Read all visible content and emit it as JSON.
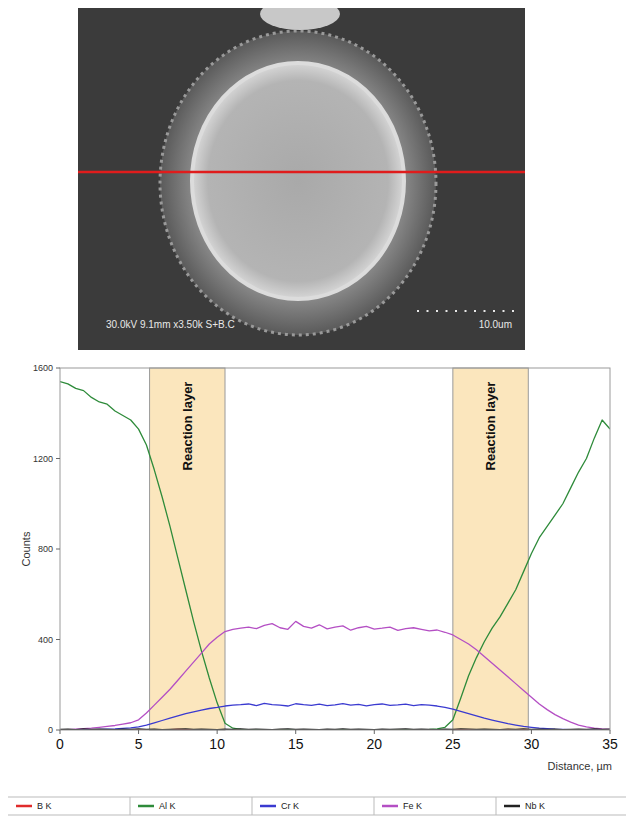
{
  "micrograph": {
    "info": "30.0kV 9.1mm x3.50k S+B.C",
    "scale_bar": "10.0um"
  },
  "chart_data": {
    "type": "line",
    "x_label": "Distance, µm",
    "y_label": "Counts",
    "xlim": [
      0,
      35
    ],
    "xticks": [
      0,
      5,
      10,
      15,
      20,
      25,
      30,
      35
    ],
    "ylim": [
      0,
      1600
    ],
    "yticks": [
      0,
      400,
      800,
      1200,
      1600
    ],
    "grid": false,
    "legend": "bottom",
    "annotations": [
      {
        "label": "Reaction layer",
        "x": [
          5.7,
          10.5
        ]
      },
      {
        "label": "Reaction layer",
        "x": [
          25,
          29.8
        ]
      }
    ],
    "x": [
      0,
      0.5,
      1,
      1.5,
      2,
      2.5,
      3,
      3.5,
      4,
      4.5,
      5,
      5.5,
      6,
      6.5,
      7,
      7.5,
      8,
      8.5,
      9,
      9.5,
      10,
      10.5,
      11,
      11.5,
      12,
      12.5,
      13,
      13.5,
      14,
      14.5,
      15,
      15.5,
      16,
      16.5,
      17,
      17.5,
      18,
      18.5,
      19,
      19.5,
      20,
      20.5,
      21,
      21.5,
      22,
      22.5,
      23,
      23.5,
      24,
      24.5,
      25,
      25.5,
      26,
      26.5,
      27,
      27.5,
      28,
      28.5,
      29,
      29.5,
      30,
      30.5,
      31,
      31.5,
      32,
      32.5,
      33,
      33.5,
      34,
      34.5,
      35
    ],
    "series": [
      {
        "name": "B K",
        "color": "#e02b2b",
        "values": [
          1,
          0,
          2,
          1,
          0,
          1,
          2,
          0,
          1,
          1,
          0,
          2,
          1,
          0,
          1,
          3,
          2,
          1,
          0,
          1,
          2,
          1,
          0,
          1,
          2,
          1,
          0,
          1,
          2,
          1,
          0,
          1,
          2,
          1,
          0,
          1,
          1,
          2,
          0,
          1,
          2,
          1,
          0,
          1,
          2,
          1,
          0,
          1,
          1,
          0,
          2,
          1,
          0,
          1,
          2,
          1,
          0,
          2,
          1,
          1,
          0,
          1,
          2,
          1,
          0,
          1,
          2,
          1,
          0,
          1,
          1
        ]
      },
      {
        "name": "Al K",
        "color": "#2e8b3a",
        "values": [
          1540,
          1530,
          1510,
          1500,
          1470,
          1450,
          1440,
          1410,
          1390,
          1370,
          1330,
          1260,
          1150,
          1030,
          900,
          760,
          620,
          480,
          350,
          230,
          120,
          30,
          8,
          3,
          2,
          1,
          0,
          1,
          0,
          2,
          1,
          0,
          0,
          1,
          2,
          0,
          1,
          0,
          1,
          0,
          0,
          2,
          1,
          0,
          1,
          0,
          2,
          3,
          5,
          12,
          45,
          140,
          240,
          320,
          390,
          450,
          500,
          560,
          620,
          700,
          780,
          850,
          900,
          950,
          1000,
          1070,
          1140,
          1200,
          1290,
          1370,
          1330
        ]
      },
      {
        "name": "Cr K",
        "color": "#3a3ad0",
        "values": [
          0,
          0,
          1,
          1,
          2,
          3,
          4,
          5,
          7,
          9,
          14,
          22,
          32,
          42,
          52,
          62,
          72,
          80,
          88,
          95,
          100,
          106,
          110,
          112,
          115,
          108,
          118,
          112,
          110,
          106,
          116,
          112,
          109,
          114,
          108,
          111,
          117,
          110,
          113,
          107,
          112,
          115,
          109,
          111,
          114,
          108,
          112,
          110,
          106,
          100,
          92,
          82,
          72,
          62,
          52,
          44,
          36,
          28,
          22,
          16,
          12,
          8,
          6,
          4,
          3,
          2,
          1,
          1,
          0,
          0,
          0
        ]
      },
      {
        "name": "Fe K",
        "color": "#b44fc4",
        "values": [
          0,
          2,
          4,
          6,
          8,
          12,
          16,
          20,
          26,
          32,
          45,
          75,
          110,
          145,
          180,
          220,
          260,
          300,
          340,
          380,
          410,
          435,
          445,
          450,
          455,
          448,
          462,
          470,
          452,
          445,
          480,
          458,
          450,
          465,
          447,
          455,
          460,
          441,
          452,
          458,
          446,
          450,
          455,
          440,
          448,
          452,
          445,
          438,
          442,
          432,
          420,
          400,
          380,
          355,
          325,
          295,
          265,
          235,
          205,
          175,
          145,
          115,
          90,
          68,
          50,
          35,
          22,
          14,
          8,
          5,
          3
        ]
      },
      {
        "name": "Nb K",
        "color": "#222222",
        "values": [
          3,
          4,
          2,
          5,
          3,
          4,
          3,
          2,
          4,
          3,
          5,
          3,
          4,
          2,
          3,
          4,
          5,
          3,
          4,
          3,
          2,
          4,
          3,
          5,
          3,
          4,
          3,
          2,
          4,
          5,
          3,
          4,
          3,
          2,
          4,
          3,
          5,
          3,
          4,
          3,
          2,
          4,
          3,
          4,
          5,
          3,
          4,
          3,
          2,
          4,
          3,
          5,
          4,
          3,
          4,
          3,
          2,
          4,
          3,
          5,
          3,
          4,
          3,
          4,
          2,
          3,
          4,
          3,
          5,
          3,
          4
        ]
      }
    ]
  }
}
